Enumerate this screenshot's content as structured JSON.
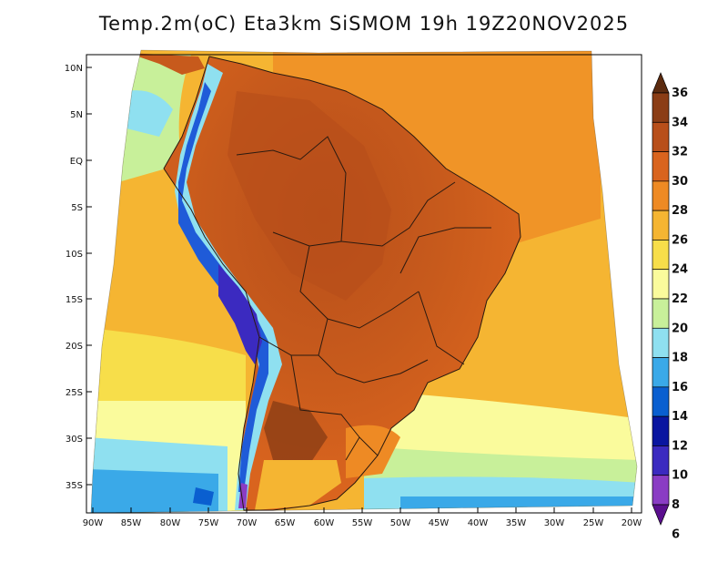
{
  "title": "Temp.2m(oC) Eta3km SiSMOM 19h 19Z20NOV2025",
  "lat_ticks": [
    "10N",
    "5N",
    "EQ",
    "5S",
    "10S",
    "15S",
    "20S",
    "25S",
    "30S",
    "35S"
  ],
  "lon_ticks": [
    "90W",
    "85W",
    "80W",
    "75W",
    "70W",
    "65W",
    "60W",
    "55W",
    "50W",
    "45W",
    "40W",
    "35W",
    "30W",
    "25W",
    "20W"
  ],
  "colorbar": {
    "labels": [
      "36",
      "34",
      "32",
      "30",
      "28",
      "26",
      "24",
      "22",
      "20",
      "18",
      "16",
      "14",
      "12",
      "10",
      "8",
      "6"
    ],
    "colors": [
      "#5c2b0f",
      "#8b3d15",
      "#b84f1a",
      "#d9641e",
      "#ee8a24",
      "#f5b532",
      "#f7de4a",
      "#fafb9c",
      "#c8f09a",
      "#8fe0f0",
      "#3aa9e8",
      "#0a5fd0",
      "#0a16a0",
      "#3b2ac0",
      "#8a3cc4",
      "#5b0f8f"
    ]
  },
  "colors": {
    "ocean_tropical": "#f6b73c",
    "ocean_subtropical": "#f8df52",
    "land_hot": "#c75a1c",
    "coast_cool": "#a6ecf7",
    "andes": "#1f5bd8",
    "boundary": "#2a1a10"
  }
}
